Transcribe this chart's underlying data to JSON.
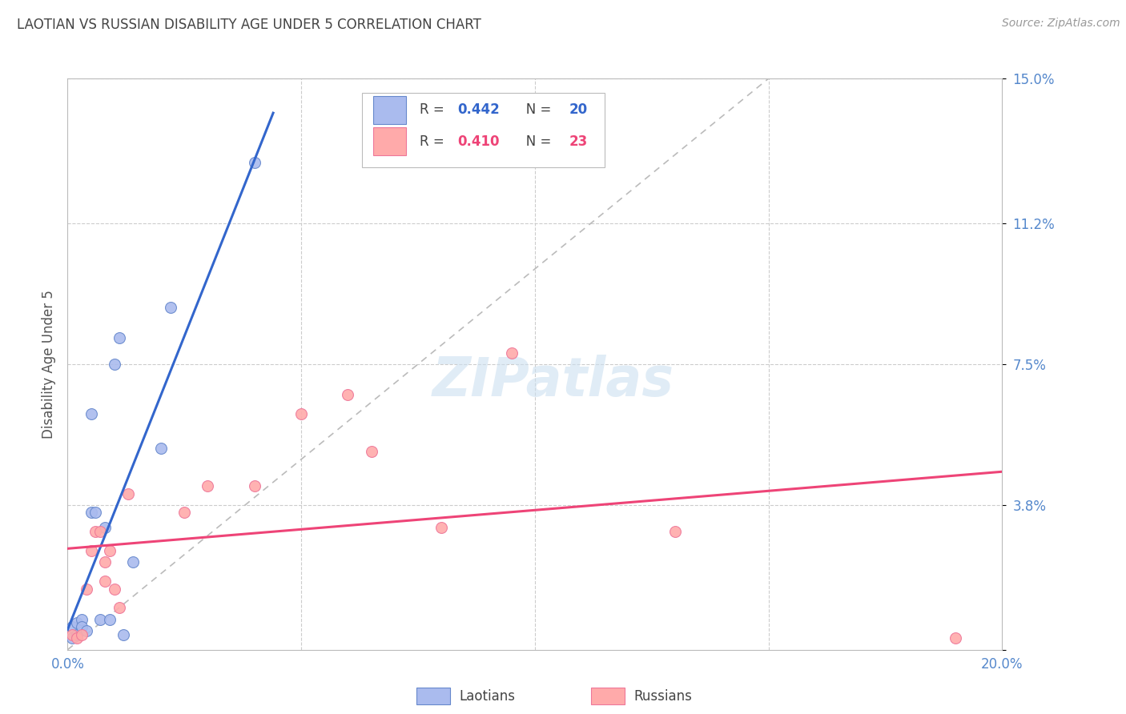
{
  "title": "LAOTIAN VS RUSSIAN DISABILITY AGE UNDER 5 CORRELATION CHART",
  "source": "Source: ZipAtlas.com",
  "ylabel": "Disability Age Under 5",
  "xlim": [
    0.0,
    0.2
  ],
  "ylim": [
    0.0,
    0.15
  ],
  "yticks": [
    0.0,
    0.038,
    0.075,
    0.112,
    0.15
  ],
  "yticklabels": [
    "",
    "3.8%",
    "7.5%",
    "11.2%",
    "15.0%"
  ],
  "xticks": [
    0.0,
    0.05,
    0.1,
    0.15,
    0.2
  ],
  "xticklabels": [
    "0.0%",
    "",
    "",
    "",
    "20.0%"
  ],
  "background_color": "#ffffff",
  "grid_color": "#cccccc",
  "title_color": "#444444",
  "axis_tick_color": "#5588cc",
  "laotian_face_color": "#aabbee",
  "laotian_edge_color": "#6688cc",
  "russian_face_color": "#ffaaaa",
  "russian_edge_color": "#ee7799",
  "laotian_line_color": "#3366cc",
  "russian_line_color": "#ee4477",
  "diagonal_color": "#bbbbbb",
  "R_laotian": 0.442,
  "N_laotian": 20,
  "R_russian": 0.41,
  "N_russian": 23,
  "laotian_x": [
    0.001,
    0.001,
    0.002,
    0.002,
    0.003,
    0.003,
    0.004,
    0.005,
    0.005,
    0.006,
    0.007,
    0.008,
    0.009,
    0.01,
    0.011,
    0.012,
    0.014,
    0.02,
    0.022,
    0.04
  ],
  "laotian_y": [
    0.006,
    0.003,
    0.007,
    0.004,
    0.008,
    0.006,
    0.005,
    0.062,
    0.036,
    0.036,
    0.008,
    0.032,
    0.008,
    0.075,
    0.082,
    0.004,
    0.023,
    0.053,
    0.09,
    0.128
  ],
  "russian_x": [
    0.001,
    0.002,
    0.003,
    0.004,
    0.005,
    0.006,
    0.007,
    0.008,
    0.008,
    0.009,
    0.01,
    0.011,
    0.013,
    0.025,
    0.03,
    0.04,
    0.05,
    0.06,
    0.065,
    0.08,
    0.095,
    0.13,
    0.19
  ],
  "russian_y": [
    0.004,
    0.003,
    0.004,
    0.016,
    0.026,
    0.031,
    0.031,
    0.023,
    0.018,
    0.026,
    0.016,
    0.011,
    0.041,
    0.036,
    0.043,
    0.043,
    0.062,
    0.067,
    0.052,
    0.032,
    0.078,
    0.031,
    0.003
  ],
  "watermark_text": "ZIPatlas",
  "marker_size": 100
}
